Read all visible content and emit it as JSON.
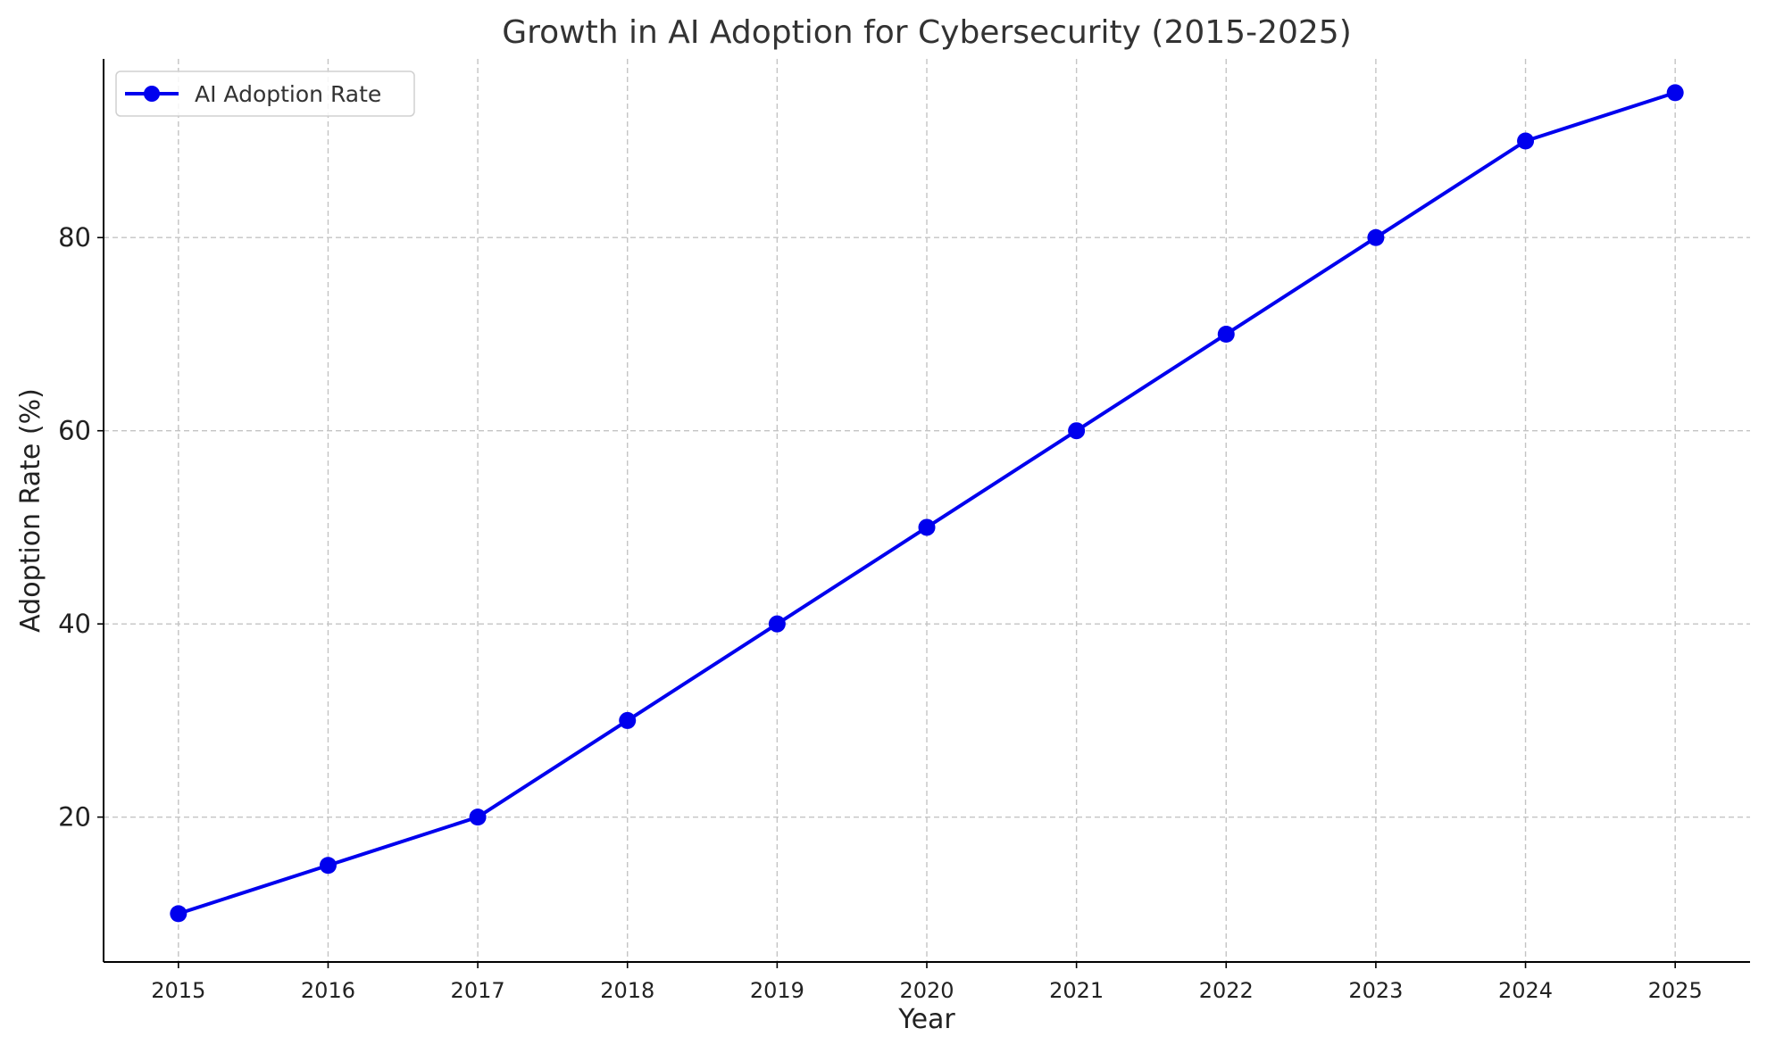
{
  "chart_data": {
    "type": "line",
    "title": "Growth in AI Adoption for Cybersecurity (2015-2025)",
    "xlabel": "Year",
    "ylabel": "Adoption Rate (%)",
    "x": [
      2015,
      2016,
      2017,
      2018,
      2019,
      2020,
      2021,
      2022,
      2023,
      2024,
      2025
    ],
    "x_tick_labels": [
      "2015",
      "2016",
      "2017",
      "2018",
      "2019",
      "2020",
      "2021",
      "2022",
      "2023",
      "2024",
      "2025"
    ],
    "y_ticks": [
      20,
      40,
      60,
      80
    ],
    "y_tick_labels": [
      "20",
      "40",
      "60",
      "80"
    ],
    "xlim": [
      2014.5,
      2025.5
    ],
    "ylim": [
      5,
      98.5
    ],
    "grid": true,
    "legend_position": "top-left",
    "series": [
      {
        "name": "AI Adoption Rate",
        "color": "#0000ee",
        "marker": "circle",
        "values": [
          10,
          15,
          20,
          30,
          40,
          50,
          60,
          70,
          80,
          90,
          95
        ]
      }
    ]
  }
}
